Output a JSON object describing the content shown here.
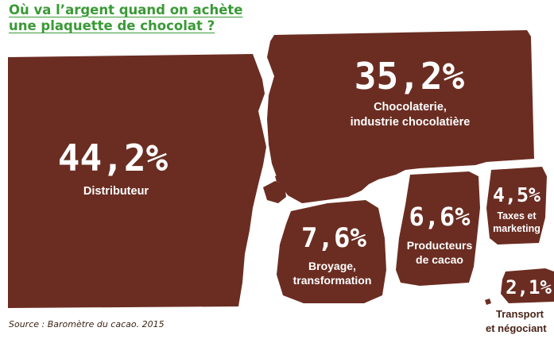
{
  "title": {
    "line1": "Où va l’argent quand on achète",
    "line2": "une plaquette de chocolat ?"
  },
  "source": "Source : Baromètre du cacao. 2015",
  "colors": {
    "chocolate": "#6b2d22",
    "title": "#3a9a36",
    "text_dark": "#4a2418"
  },
  "chart_data": {
    "type": "area",
    "series": [
      {
        "value_label": "44,2%",
        "value": 44.2,
        "label_lines": [
          "Distributeur"
        ]
      },
      {
        "value_label": "35,2%",
        "value": 35.2,
        "label_lines": [
          "Chocolaterie,",
          "industrie chocolatière"
        ]
      },
      {
        "value_label": "7,6%",
        "value": 7.6,
        "label_lines": [
          "Broyage,",
          "transformation"
        ]
      },
      {
        "value_label": "6,6%",
        "value": 6.6,
        "label_lines": [
          "Producteurs",
          "de cacao"
        ]
      },
      {
        "value_label": "4,5%",
        "value": 4.5,
        "label_lines": [
          "Taxes et",
          "marketing"
        ]
      },
      {
        "value_label": "2,1%",
        "value": 2.1,
        "label_lines": [
          "Transport",
          "et négociant"
        ]
      }
    ]
  }
}
